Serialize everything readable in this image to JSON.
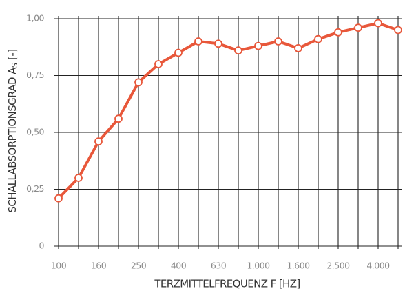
{
  "chart_data": {
    "type": "line",
    "xlabel": "TERZMITTELFREQUENZ F [HZ]",
    "ylabel": "SCHALLABSORPTIONSGRAD A",
    "ylabel_subscript": "S",
    "ylabel_suffix": "[-]",
    "categories": [
      "100",
      null,
      "160",
      null,
      "250",
      null,
      "400",
      null,
      "630",
      null,
      "1.000",
      null,
      "1.600",
      null,
      "2.500",
      null,
      "4.000",
      null
    ],
    "series": [
      {
        "name": "Schallabsorptionsgrad",
        "color": "#e8573a",
        "values": [
          0.21,
          0.3,
          0.46,
          0.56,
          0.72,
          0.8,
          0.85,
          0.9,
          0.89,
          0.86,
          0.88,
          0.9,
          0.87,
          0.91,
          0.94,
          0.96,
          0.98,
          0.95
        ]
      }
    ],
    "ylim": [
      0,
      1
    ],
    "yticks": [
      0,
      {
        "value": 0.25,
        "label": "0,25"
      },
      {
        "value": 0.5,
        "label": "0,50"
      },
      {
        "value": 0.75,
        "label": "0,75"
      },
      {
        "value": 1,
        "label": "1,00"
      }
    ],
    "grid": true
  }
}
